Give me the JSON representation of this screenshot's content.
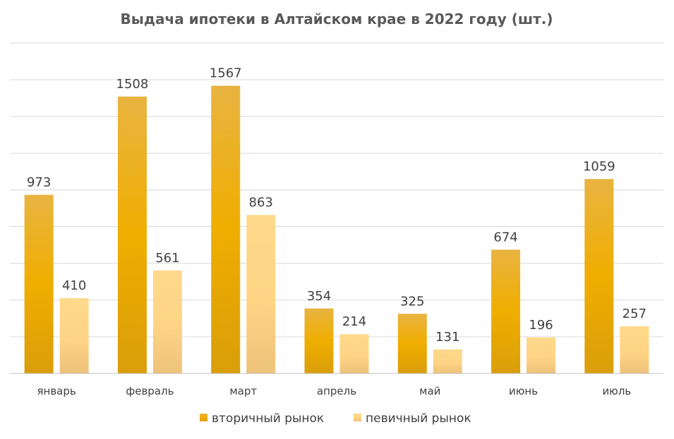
{
  "chart_data": {
    "type": "bar",
    "title": "Выдача ипотеки в Алтайском крае в 2022 году (шт.)",
    "categories": [
      "январь",
      "февраль",
      "март",
      "апрель",
      "май",
      "июнь",
      "июль"
    ],
    "series": [
      {
        "name": "вторичный рынок",
        "values": [
          973,
          1508,
          1567,
          354,
          325,
          674,
          1059
        ],
        "color": "#E6A817"
      },
      {
        "name": "певичный рынок",
        "values": [
          410,
          561,
          863,
          214,
          131,
          196,
          257
        ],
        "color": "#FFD98A"
      }
    ],
    "xlabel": "",
    "ylabel": "",
    "ylim": [
      0,
      1800
    ],
    "grid": true,
    "y_tick_labels_shown": false,
    "data_labels": true,
    "legend_position": "bottom"
  }
}
